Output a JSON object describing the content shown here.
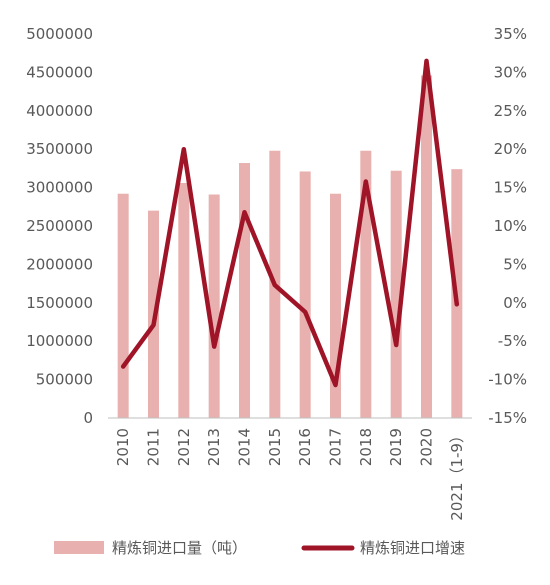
{
  "chart_data": {
    "type": "bar",
    "title": "",
    "xlabel": "",
    "ylabel": "",
    "categories": [
      "2010",
      "2011",
      "2012",
      "2013",
      "2014",
      "2015",
      "2016",
      "2017",
      "2018",
      "2019",
      "2020",
      "2021（1-9）"
    ],
    "series": [
      {
        "name": "精炼铜进口量（吨）",
        "type": "bar",
        "axis": "left",
        "color": "#e8b0ae",
        "values": [
          2920000,
          2700000,
          3060000,
          2910000,
          3320000,
          3480000,
          3210000,
          2920000,
          3480000,
          3220000,
          4460000,
          3240000
        ]
      },
      {
        "name": "精炼铜进口增速",
        "type": "line",
        "axis": "right",
        "color": "#a01428",
        "values": [
          -8.3,
          -2.9,
          20.0,
          -5.7,
          11.8,
          2.3,
          -1.2,
          -10.7,
          15.8,
          -5.5,
          31.5,
          -0.2
        ]
      }
    ],
    "y_left": {
      "ylim": [
        0,
        5000000
      ],
      "ticks": [
        "0",
        "500000",
        "1000000",
        "1500000",
        "2000000",
        "2500000",
        "3000000",
        "3500000",
        "4000000",
        "4500000",
        "5000000"
      ]
    },
    "y_right": {
      "ylim": [
        -15,
        35
      ],
      "ticks": [
        "-15%",
        "-10%",
        "-5%",
        "0%",
        "5%",
        "10%",
        "15%",
        "20%",
        "25%",
        "30%",
        "35%"
      ]
    },
    "grid": false,
    "legend_position": "bottom"
  }
}
